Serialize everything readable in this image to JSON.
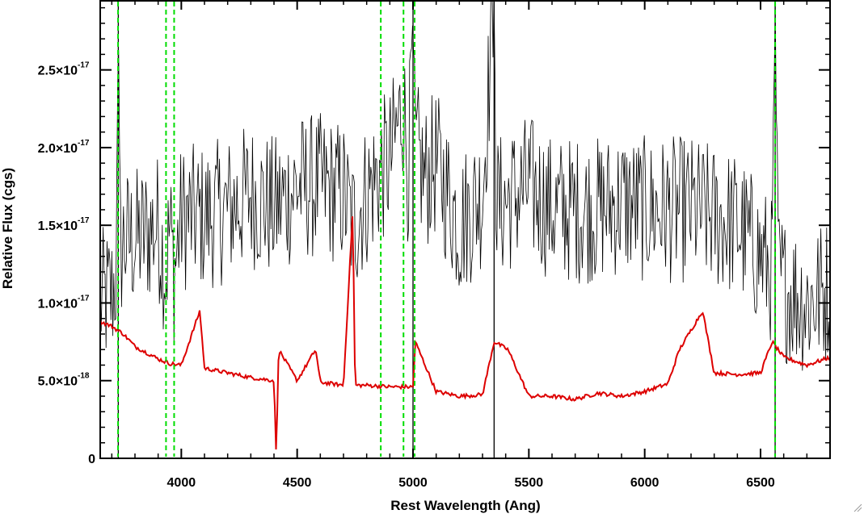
{
  "chart_data": {
    "type": "line",
    "title": "",
    "xlabel": "Rest Wavelength (Ang)",
    "ylabel": "Relative Flux (cgs)",
    "xlim": [
      3650,
      6800
    ],
    "ylim": [
      0,
      2.95e-17
    ],
    "x_ticks": [
      {
        "value": 4000,
        "label": "4000"
      },
      {
        "value": 4500,
        "label": "4500"
      },
      {
        "value": 5000,
        "label": "5000"
      },
      {
        "value": 5500,
        "label": "5500"
      },
      {
        "value": 6000,
        "label": "6000"
      },
      {
        "value": 6500,
        "label": "6500"
      }
    ],
    "y_ticks": [
      {
        "value": 0,
        "label": "0"
      },
      {
        "value": 5e-18,
        "label": "5.0×10",
        "exp": "-18"
      },
      {
        "value": 1e-17,
        "label": "1.0×10",
        "exp": "-17"
      },
      {
        "value": 1.5e-17,
        "label": "1.5×10",
        "exp": "-17"
      },
      {
        "value": 2e-17,
        "label": "2.0×10",
        "exp": "-17"
      },
      {
        "value": 2.5e-17,
        "label": "2.5×10",
        "exp": "-17"
      }
    ],
    "grid": false,
    "legend": "none",
    "series": [
      {
        "color": "#000000",
        "description": "observed spectrum (noisy)",
        "x": [
          3650,
          3700,
          3720,
          3728,
          3735,
          3750,
          3800,
          3850,
          3900,
          3934,
          3950,
          3969,
          4000,
          4100,
          4200,
          4300,
          4400,
          4500,
          4600,
          4700,
          4740,
          4800,
          4861,
          4900,
          4959,
          4980,
          5000,
          5007,
          5050,
          5100,
          5200,
          5300,
          5350,
          5360,
          5400,
          5500,
          5600,
          5700,
          5800,
          5900,
          6000,
          6100,
          6200,
          6300,
          6400,
          6500,
          6550,
          6563,
          6575,
          6600,
          6650,
          6700,
          6750,
          6800
        ],
        "y": [
          1e-17,
          1.05e-17,
          1.2e-17,
          3e-17,
          1.3e-17,
          1.4e-17,
          1.4e-17,
          1.45e-17,
          1.5e-17,
          1.2e-17,
          1.5e-17,
          1.2e-17,
          1.55e-17,
          1.55e-17,
          1.6e-17,
          1.7e-17,
          1.6e-17,
          1.75e-17,
          1.75e-17,
          1.7e-17,
          1.5e-17,
          1.7e-17,
          1.85e-17,
          1.9e-17,
          2.3e-17,
          1.8e-17,
          2.9e-17,
          2e-17,
          1.8e-17,
          1.9e-17,
          1.5e-17,
          1.7e-17,
          3e-17,
          1.6e-17,
          1.65e-17,
          1.75e-17,
          1.6e-17,
          1.6e-17,
          1.6e-17,
          1.65e-17,
          1.6e-17,
          1.6e-17,
          1.6e-17,
          1.55e-17,
          1.5e-17,
          1.3e-17,
          1.2e-17,
          3e-17,
          1.2e-17,
          1.1e-17,
          1.05e-17,
          1e-17,
          1.05e-17,
          1.1e-17
        ],
        "noise": 4.8e-18
      },
      {
        "color": "#dd0000",
        "description": "model / sky spectrum",
        "x": [
          3650,
          3700,
          3750,
          3800,
          3850,
          3900,
          3950,
          4000,
          4080,
          4100,
          4200,
          4300,
          4400,
          4410,
          4420,
          4500,
          4580,
          4600,
          4700,
          4740,
          4750,
          4800,
          4900,
          5000,
          5010,
          5100,
          5200,
          5300,
          5350,
          5410,
          5500,
          5600,
          5700,
          5800,
          5900,
          6000,
          6100,
          6150,
          6250,
          6300,
          6400,
          6500,
          6550,
          6600,
          6700,
          6800
        ],
        "y": [
          8.8e-18,
          8.5e-18,
          8e-18,
          7.2e-18,
          6.8e-18,
          6.4e-18,
          6.1e-18,
          6e-18,
          9.5e-18,
          5.8e-18,
          5.5e-18,
          5.2e-18,
          5e-18,
          0.0,
          7e-18,
          5e-18,
          7e-18,
          4.9e-18,
          4.7e-18,
          1.6e-17,
          4.7e-18,
          4.7e-18,
          4.6e-18,
          4.6e-18,
          7.5e-18,
          4.3e-18,
          4e-18,
          4.1e-18,
          7.5e-18,
          7e-18,
          4e-18,
          4e-18,
          3.8e-18,
          4.2e-18,
          4e-18,
          4.3e-18,
          4.8e-18,
          7e-18,
          9.5e-18,
          5.5e-18,
          5.4e-18,
          5.5e-18,
          7.5e-18,
          6.5e-18,
          6e-18,
          6.5e-18
        ]
      }
    ],
    "vertical_markers": {
      "color": "#00dd00",
      "style": "dashed",
      "x": [
        3727,
        3934,
        3969,
        4861,
        4959,
        5007,
        6563
      ]
    }
  }
}
